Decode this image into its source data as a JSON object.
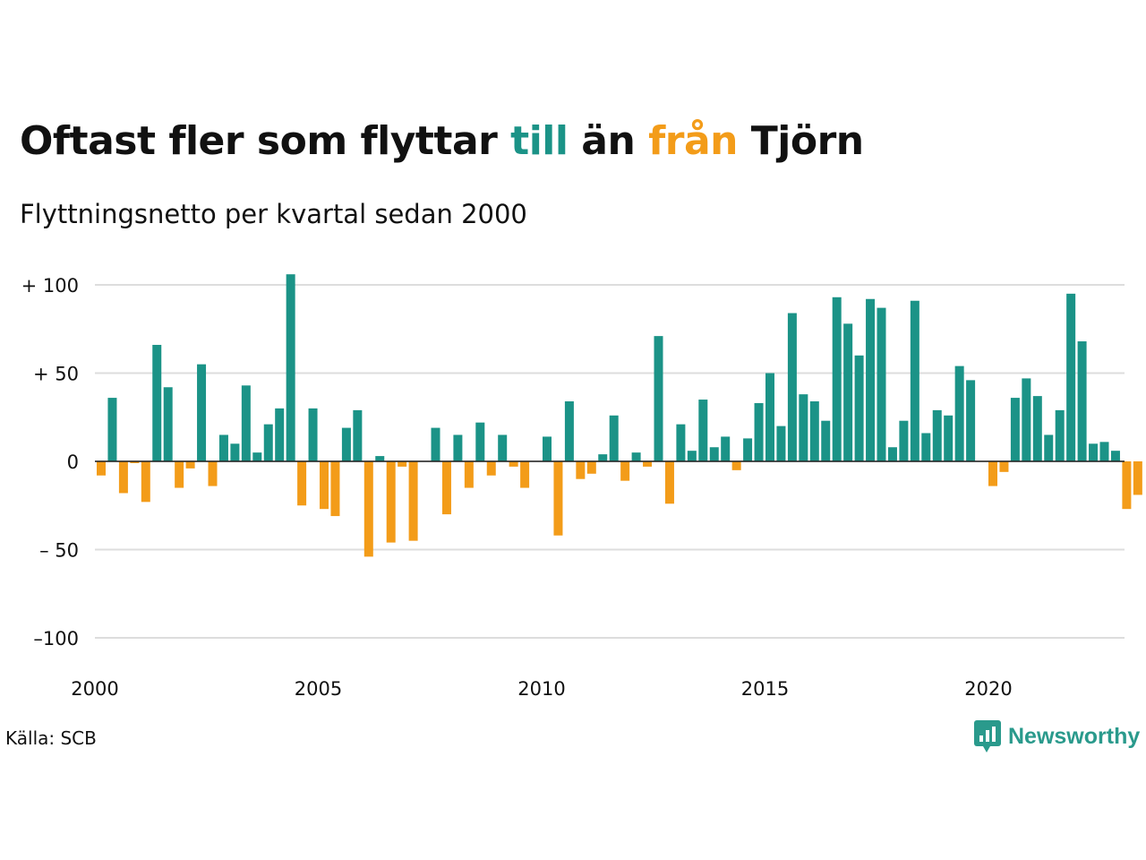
{
  "title": {
    "part1": "Oftast fler som flyttar ",
    "till": "till",
    "part2": " än ",
    "fran": "från",
    "part3": " Tjörn"
  },
  "subtitle": "Flyttningsnetto per kvartal sedan 2000",
  "source": "Källa: SCB",
  "brand": {
    "name": "Newsworthy",
    "icon": "newsworthy-logo-icon"
  },
  "colors": {
    "positive": "#1b9387",
    "negative": "#f39c19",
    "grid": "#dddddd",
    "brand": "#2a9a8c"
  },
  "chart_data": {
    "type": "bar",
    "title": "Oftast fler som flyttar till än från Tjörn",
    "subtitle": "Flyttningsnetto per kvartal sedan 2000",
    "xlabel": "",
    "ylabel": "",
    "ylim": [
      -100,
      100
    ],
    "yticks": [
      100,
      50,
      0,
      -50,
      -100
    ],
    "ytick_labels": [
      "+ 100",
      "+  50",
      "0",
      "– 50",
      "–100"
    ],
    "xticks": [
      2000,
      2005,
      2010,
      2015,
      2020
    ],
    "xtick_labels": [
      "2000",
      "2005",
      "2010",
      "2015",
      "2020"
    ],
    "grid": true,
    "start": "2000 Q1",
    "frequency": "quarter",
    "values": [
      -8,
      36,
      -18,
      -1,
      -23,
      66,
      42,
      -15,
      -4,
      55,
      -14,
      15,
      10,
      43,
      5,
      21,
      30,
      106,
      -25,
      30,
      -27,
      -31,
      19,
      29,
      -54,
      3,
      -46,
      -3,
      -45,
      0,
      19,
      -30,
      15,
      -15,
      22,
      -8,
      15,
      -3,
      -15,
      0,
      14,
      -42,
      34,
      -10,
      -7,
      4,
      26,
      -11,
      5,
      -3,
      71,
      -24,
      21,
      6,
      35,
      8,
      14,
      -5,
      13,
      33,
      50,
      20,
      84,
      38,
      34,
      23,
      93,
      78,
      60,
      92,
      87,
      8,
      23,
      91,
      16,
      29,
      26,
      54,
      46,
      0,
      -14,
      -6,
      36,
      47,
      37,
      15,
      29,
      95,
      68,
      10,
      11,
      6,
      -27,
      -19
    ]
  }
}
